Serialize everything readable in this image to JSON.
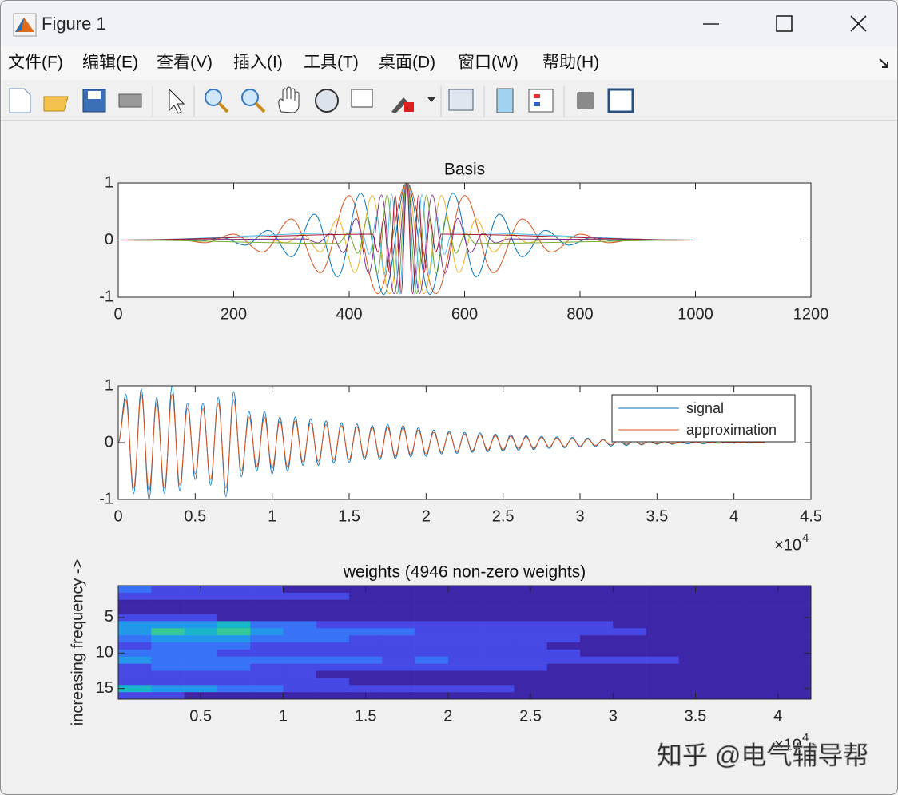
{
  "window": {
    "title": "Figure 1",
    "menu": [
      "文件(F)",
      "编辑(E)",
      "查看(V)",
      "插入(I)",
      "工具(T)",
      "桌面(D)",
      "窗口(W)",
      "帮助(H)"
    ]
  },
  "watermark": "知乎 @电气辅导帮",
  "chart_data": [
    {
      "type": "line",
      "title": "Basis",
      "series": [
        {
          "color": "#d95319",
          "x": [
            0,
            50,
            100,
            150,
            200,
            250,
            300,
            350,
            400,
            450,
            500,
            550,
            600,
            650,
            700,
            750,
            800,
            850,
            900,
            950,
            1000
          ],
          "values": [
            0,
            -0.006,
            0.018,
            -0.047,
            0.105,
            -0.21,
            0.37,
            -0.57,
            0.78,
            -0.94,
            1,
            -0.94,
            0.78,
            -0.57,
            0.37,
            -0.21,
            0.105,
            -0.047,
            0.018,
            -0.006,
            0
          ]
        },
        {
          "color": "#0072bd",
          "x": [
            0,
            100,
            140,
            180,
            220,
            260,
            300,
            340,
            380,
            420,
            460,
            500,
            540,
            580,
            620,
            660,
            700,
            740,
            780,
            820,
            860,
            900,
            1000
          ],
          "values": [
            0,
            0.007,
            -0.018,
            0.042,
            -0.089,
            0.169,
            -0.291,
            0.454,
            -0.641,
            0.821,
            -0.952,
            1,
            -0.952,
            0.821,
            -0.641,
            0.454,
            -0.291,
            0.169,
            -0.089,
            0.042,
            -0.018,
            0.007,
            0
          ]
        },
        {
          "color": "#edb120",
          "x": [
            0,
            260,
            290,
            320,
            350,
            380,
            410,
            440,
            470,
            500,
            530,
            560,
            590,
            620,
            650,
            680,
            710,
            740,
            1000
          ],
          "values": [
            0,
            0.018,
            -0.047,
            0.105,
            -0.21,
            0.37,
            -0.57,
            0.78,
            -0.94,
            1,
            -0.94,
            0.78,
            -0.57,
            0.37,
            -0.21,
            0.105,
            -0.047,
            0.018,
            0
          ]
        },
        {
          "color": "#7e2f8e",
          "x": [
            0,
            324,
            346,
            368,
            390,
            412,
            434,
            456,
            478,
            500,
            522,
            544,
            566,
            588,
            610,
            632,
            654,
            676,
            1000
          ],
          "values": [
            0,
            0.02,
            -0.05,
            0.12,
            -0.22,
            0.38,
            -0.58,
            0.79,
            -0.94,
            1,
            -0.94,
            0.79,
            -0.58,
            0.38,
            -0.22,
            0.12,
            -0.05,
            0.02,
            0
          ]
        },
        {
          "color": "#77ac30",
          "x": [
            0,
            381,
            398,
            415,
            432,
            449,
            466,
            483,
            500,
            517,
            534,
            551,
            568,
            585,
            602,
            619,
            1000
          ],
          "values": [
            0,
            -0.06,
            0.12,
            -0.23,
            0.39,
            -0.59,
            0.79,
            -0.94,
            1,
            -0.94,
            0.79,
            -0.59,
            0.39,
            -0.23,
            0.12,
            -0.06,
            0
          ]
        },
        {
          "color": "#4dbeee",
          "x": [
            0,
            422,
            435,
            448,
            461,
            474,
            487,
            500,
            513,
            526,
            539,
            552,
            565,
            578,
            1000
          ],
          "values": [
            0,
            0.13,
            -0.25,
            0.41,
            -0.6,
            0.8,
            -0.95,
            1,
            -0.95,
            0.8,
            -0.6,
            0.41,
            -0.25,
            0.13,
            0
          ]
        },
        {
          "color": "#a2142f",
          "x": [
            0,
            440,
            450,
            460,
            470,
            480,
            490,
            500,
            510,
            520,
            530,
            540,
            550,
            560,
            1000
          ],
          "values": [
            0,
            0.105,
            -0.21,
            0.37,
            -0.57,
            0.78,
            -0.94,
            1,
            -0.94,
            0.78,
            -0.57,
            0.37,
            -0.21,
            0.105,
            0
          ]
        }
      ],
      "xlim": [
        0,
        1200
      ],
      "xticks": [
        0,
        200,
        400,
        600,
        800,
        1000,
        1200
      ],
      "ylim": [
        -1,
        1
      ],
      "yticks": [
        -1,
        0,
        1
      ]
    },
    {
      "type": "line",
      "x": [
        0,
        500,
        1000,
        1500,
        2000,
        2500,
        3000,
        3500,
        4000,
        4500,
        5000,
        5500,
        6000,
        6500,
        7000,
        7500,
        8000,
        8500,
        9000,
        9500,
        10000,
        10500,
        11000,
        11500,
        12000,
        12500,
        13000,
        13500,
        14000,
        14500,
        15000,
        15500,
        16000,
        16500,
        17000,
        17500,
        18000,
        18500,
        19000,
        19500,
        20000,
        20500,
        21000,
        21500,
        22000,
        22500,
        23000,
        23500,
        24000,
        24500,
        25000,
        25500,
        26000,
        26500,
        27000,
        27500,
        28000,
        28500,
        29000,
        29500,
        30000,
        30500,
        31000,
        31500,
        32000,
        32500,
        33000,
        33500,
        34000,
        34500,
        35000,
        35500,
        36000,
        36500,
        37000,
        37500,
        38000,
        38500,
        39000,
        39500,
        40000,
        40500,
        41000,
        41500,
        42000
      ],
      "series": [
        {
          "name": "signal",
          "color": "#0072bd",
          "values": [
            0,
            0.85,
            -0.9,
            0.95,
            -1,
            0.8,
            -0.9,
            1,
            -0.85,
            0.7,
            -0.65,
            0.7,
            -0.75,
            0.8,
            -0.95,
            0.9,
            -0.6,
            0.55,
            -0.5,
            0.55,
            -0.55,
            0.45,
            -0.5,
            0.45,
            -0.4,
            0.42,
            -0.4,
            0.38,
            -0.36,
            0.35,
            -0.35,
            0.33,
            -0.3,
            0.3,
            -0.3,
            0.32,
            -0.28,
            0.3,
            -0.25,
            0.26,
            -0.24,
            0.22,
            -0.2,
            0.2,
            -0.19,
            0.18,
            -0.17,
            0.17,
            -0.16,
            0.15,
            -0.15,
            0.14,
            -0.13,
            0.12,
            -0.12,
            0.11,
            -0.1,
            0.1,
            -0.09,
            0.09,
            -0.08,
            0.08,
            -0.07,
            0.06,
            -0.06,
            0.05,
            -0.05,
            0.04,
            -0.04,
            0.04,
            -0.03,
            0.03,
            -0.03,
            0.02,
            -0.02,
            0.02,
            -0.02,
            0.01,
            -0.01,
            0.01,
            -0.01,
            0.01,
            -0.01,
            0.01,
            0
          ]
        },
        {
          "name": "approximation",
          "color": "#d95319",
          "values": [
            0,
            0.75,
            -0.8,
            0.85,
            -0.85,
            0.7,
            -0.8,
            0.85,
            -0.75,
            0.6,
            -0.55,
            0.6,
            -0.65,
            0.7,
            -0.8,
            0.75,
            -0.5,
            0.45,
            -0.42,
            0.45,
            -0.45,
            0.38,
            -0.42,
            0.38,
            -0.34,
            0.35,
            -0.33,
            0.32,
            -0.3,
            0.3,
            -0.3,
            0.28,
            -0.26,
            0.26,
            -0.26,
            0.27,
            -0.24,
            0.26,
            -0.21,
            0.22,
            -0.2,
            0.18,
            -0.17,
            0.17,
            -0.16,
            0.15,
            -0.14,
            0.14,
            -0.13,
            0.12,
            -0.12,
            0.11,
            -0.1,
            0.1,
            -0.1,
            0.09,
            -0.08,
            0.08,
            -0.07,
            0.07,
            -0.06,
            0.06,
            -0.05,
            0.05,
            -0.04,
            0.04,
            -0.03,
            0.03,
            -0.03,
            0.02,
            -0.02,
            0.02,
            -0.02,
            0.01,
            -0.01,
            0.01,
            -0.01,
            0.01,
            -0.01,
            0.01,
            0,
            0,
            0,
            0,
            0
          ]
        }
      ],
      "xlim": [
        0,
        45000
      ],
      "xticks": [
        0,
        {
          "value": 5000,
          "label": "0.5"
        },
        {
          "value": 10000,
          "label": "1"
        },
        {
          "value": 15000,
          "label": "1.5"
        },
        {
          "value": 20000,
          "label": "2"
        },
        {
          "value": 25000,
          "label": "2.5"
        },
        {
          "value": 30000,
          "label": "3"
        },
        {
          "value": 35000,
          "label": "3.5"
        },
        {
          "value": 40000,
          "label": "4"
        },
        {
          "value": 45000,
          "label": "4.5"
        }
      ],
      "ylim": [
        -1,
        1
      ],
      "yticks": [
        -1,
        0,
        1
      ],
      "x_multiplier": {
        "base": "×10",
        "power": "4"
      },
      "legend": "northeast"
    },
    {
      "type": "heatmap",
      "title": "weights (4946 non-zero weights)",
      "ylabel": "increasing frequency ->",
      "xbins": [
        0,
        2000,
        4000,
        6000,
        8000,
        10000,
        12000,
        14000,
        16000,
        18000,
        20000,
        22000,
        24000,
        26000,
        28000,
        30000,
        32000,
        34000,
        36000,
        38000,
        40000,
        42000
      ],
      "y": [
        1,
        2,
        3,
        4,
        5,
        6,
        7,
        8,
        9,
        10,
        11,
        12,
        13,
        14,
        15,
        16
      ],
      "z": [
        [
          0.2,
          0.1,
          0.1,
          0.1,
          0.1,
          0,
          0,
          0,
          0,
          0,
          0,
          0,
          0,
          0,
          0,
          0,
          0,
          0,
          0,
          0,
          0
        ],
        [
          0.1,
          0.1,
          0.1,
          0.1,
          0.1,
          0.1,
          0.1,
          0,
          0,
          0,
          0,
          0,
          0,
          0,
          0,
          0,
          0,
          0,
          0,
          0,
          0
        ],
        [
          0,
          0,
          0,
          0,
          0,
          0,
          0,
          0,
          0,
          0,
          0,
          0,
          0,
          0,
          0,
          0,
          0,
          0,
          0,
          0,
          0
        ],
        [
          0,
          0,
          0,
          0,
          0,
          0,
          0,
          0,
          0,
          0,
          0,
          0,
          0,
          0,
          0,
          0,
          0,
          0,
          0,
          0,
          0
        ],
        [
          0.1,
          0.1,
          0.1,
          0,
          0,
          0,
          0,
          0,
          0,
          0,
          0,
          0,
          0,
          0,
          0,
          0,
          0,
          0,
          0,
          0,
          0
        ],
        [
          0.3,
          0.3,
          0.3,
          0.4,
          0.2,
          0.2,
          0.1,
          0.1,
          0.1,
          0.1,
          0.1,
          0.1,
          0.1,
          0.1,
          0.1,
          0,
          0,
          0,
          0,
          0,
          0
        ],
        [
          0.3,
          0.5,
          0.4,
          0.5,
          0.3,
          0.2,
          0.2,
          0.2,
          0.2,
          0.1,
          0.1,
          0.1,
          0.1,
          0.1,
          0.1,
          0.1,
          0,
          0,
          0,
          0,
          0
        ],
        [
          0.2,
          0.3,
          0.3,
          0.3,
          0.2,
          0.2,
          0.2,
          0.1,
          0.1,
          0.1,
          0.1,
          0.1,
          0.1,
          0.1,
          0,
          0,
          0,
          0,
          0,
          0,
          0
        ],
        [
          0.1,
          0.2,
          0.2,
          0.2,
          0.1,
          0.1,
          0.1,
          0.1,
          0.1,
          0.1,
          0.1,
          0.1,
          0.1,
          0,
          0,
          0,
          0,
          0,
          0,
          0,
          0
        ],
        [
          0.2,
          0.2,
          0.2,
          0.1,
          0.1,
          0.1,
          0.1,
          0.1,
          0.1,
          0.1,
          0.1,
          0.1,
          0.1,
          0.1,
          0,
          0,
          0,
          0,
          0,
          0,
          0
        ],
        [
          0.3,
          0.2,
          0.2,
          0.2,
          0.2,
          0.2,
          0.2,
          0.2,
          0.1,
          0.2,
          0.1,
          0.1,
          0.1,
          0.1,
          0.1,
          0.1,
          0.1,
          0,
          0,
          0,
          0
        ],
        [
          0.1,
          0.2,
          0.2,
          0.2,
          0.1,
          0.1,
          0.1,
          0.1,
          0.1,
          0.1,
          0.1,
          0.1,
          0.1,
          0,
          0,
          0,
          0,
          0,
          0,
          0,
          0
        ],
        [
          0.1,
          0.1,
          0.1,
          0.1,
          0.1,
          0.1,
          0,
          0,
          0,
          0,
          0,
          0,
          0,
          0,
          0,
          0,
          0,
          0,
          0,
          0,
          0
        ],
        [
          0.1,
          0.1,
          0.1,
          0.1,
          0.1,
          0.1,
          0.1,
          0,
          0,
          0,
          0,
          0,
          0,
          0,
          0,
          0,
          0,
          0,
          0,
          0,
          0
        ],
        [
          0.4,
          0.3,
          0.3,
          0.2,
          0.2,
          0.1,
          0.1,
          0.1,
          0.1,
          0.1,
          0.1,
          0.1,
          0,
          0,
          0,
          0,
          0,
          0,
          0,
          0,
          0
        ],
        [
          0.1,
          0.1,
          0,
          0,
          0,
          0,
          0,
          0,
          0,
          0,
          0,
          0,
          0,
          0,
          0,
          0,
          0,
          0,
          0,
          0,
          0
        ]
      ],
      "xlim": [
        0,
        42000
      ],
      "xticks": [
        {
          "value": 5000,
          "label": "0.5"
        },
        {
          "value": 10000,
          "label": "1"
        },
        {
          "value": 15000,
          "label": "1.5"
        },
        {
          "value": 20000,
          "label": "2"
        },
        {
          "value": 25000,
          "label": "2.5"
        },
        {
          "value": 30000,
          "label": "3"
        },
        {
          "value": 35000,
          "label": "3.5"
        },
        {
          "value": 40000,
          "label": "4"
        }
      ],
      "ylim": [
        0.5,
        16.5
      ],
      "ydir": "reverse",
      "yticks": [
        5,
        10,
        15
      ],
      "colormap": "parula",
      "clim": [
        0,
        1
      ],
      "x_multiplier": {
        "base": "×10",
        "power": "4"
      }
    }
  ]
}
